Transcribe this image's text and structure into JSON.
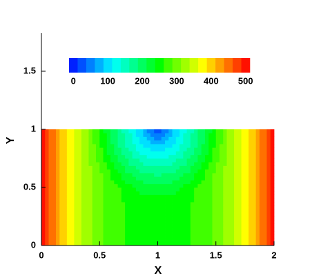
{
  "chart_data": {
    "type": "contour",
    "xlabel": "X",
    "ylabel": "Y",
    "xlim": [
      0,
      2
    ],
    "ylim": [
      0,
      1.83
    ],
    "xticks": [
      0,
      0.5,
      1,
      1.5,
      2
    ],
    "yticks": [
      0,
      0.5,
      1,
      1.5
    ],
    "x": [
      0,
      0.125,
      0.25,
      0.375,
      0.5,
      0.625,
      0.75,
      0.875,
      1,
      1.125,
      1.25,
      1.375,
      1.5,
      1.625,
      1.75,
      1.875,
      2
    ],
    "y": [
      0,
      0.125,
      0.25,
      0.375,
      0.5,
      0.625,
      0.75,
      0.875,
      1
    ],
    "values": [
      [
        500,
        429,
        372,
        327,
        294,
        272,
        258,
        251,
        250,
        251,
        258,
        272,
        294,
        327,
        372,
        429,
        500
      ],
      [
        500,
        429,
        372,
        327,
        294,
        272,
        258,
        251,
        250,
        251,
        258,
        272,
        294,
        327,
        372,
        429,
        500
      ],
      [
        500,
        429,
        372,
        327,
        294,
        272,
        258,
        251,
        250,
        251,
        258,
        272,
        294,
        327,
        372,
        429,
        500
      ],
      [
        500,
        429,
        372,
        327,
        294,
        272,
        258,
        251,
        250,
        251,
        258,
        272,
        294,
        327,
        372,
        429,
        500
      ],
      [
        500,
        429,
        372,
        327,
        294,
        272,
        246,
        226,
        220,
        226,
        246,
        272,
        294,
        327,
        372,
        429,
        500
      ],
      [
        500,
        429,
        372,
        327,
        294,
        249,
        211,
        188,
        180,
        188,
        211,
        249,
        294,
        327,
        372,
        429,
        500
      ],
      [
        500,
        429,
        372,
        327,
        280,
        222,
        178,
        147,
        136,
        147,
        178,
        222,
        280,
        327,
        372,
        429,
        500
      ],
      [
        500,
        429,
        372,
        327,
        264,
        203,
        151,
        107,
        83,
        107,
        151,
        203,
        264,
        327,
        372,
        429,
        500
      ],
      [
        500,
        429,
        372,
        327,
        259,
        196,
        140,
        84,
        0,
        84,
        140,
        196,
        259,
        327,
        372,
        429,
        500
      ]
    ],
    "levels": [
      0,
      25,
      50,
      75,
      100,
      125,
      150,
      175,
      200,
      225,
      250,
      275,
      300,
      325,
      350,
      375,
      400,
      425,
      450,
      475,
      500
    ],
    "colors": [
      "#0020ff",
      "#0050ff",
      "#0080ff",
      "#00b0ff",
      "#00e0ff",
      "#00ffee",
      "#00ffc0",
      "#00ff90",
      "#00ff60",
      "#00ff30",
      "#00ff00",
      "#40ff00",
      "#70ff00",
      "#a0ff00",
      "#d0ff00",
      "#ffff00",
      "#ffd000",
      "#ffa000",
      "#ff7000",
      "#ff4000",
      "#ff1000"
    ],
    "colorbar_ticks": [
      0,
      100,
      200,
      300,
      400,
      500
    ]
  }
}
